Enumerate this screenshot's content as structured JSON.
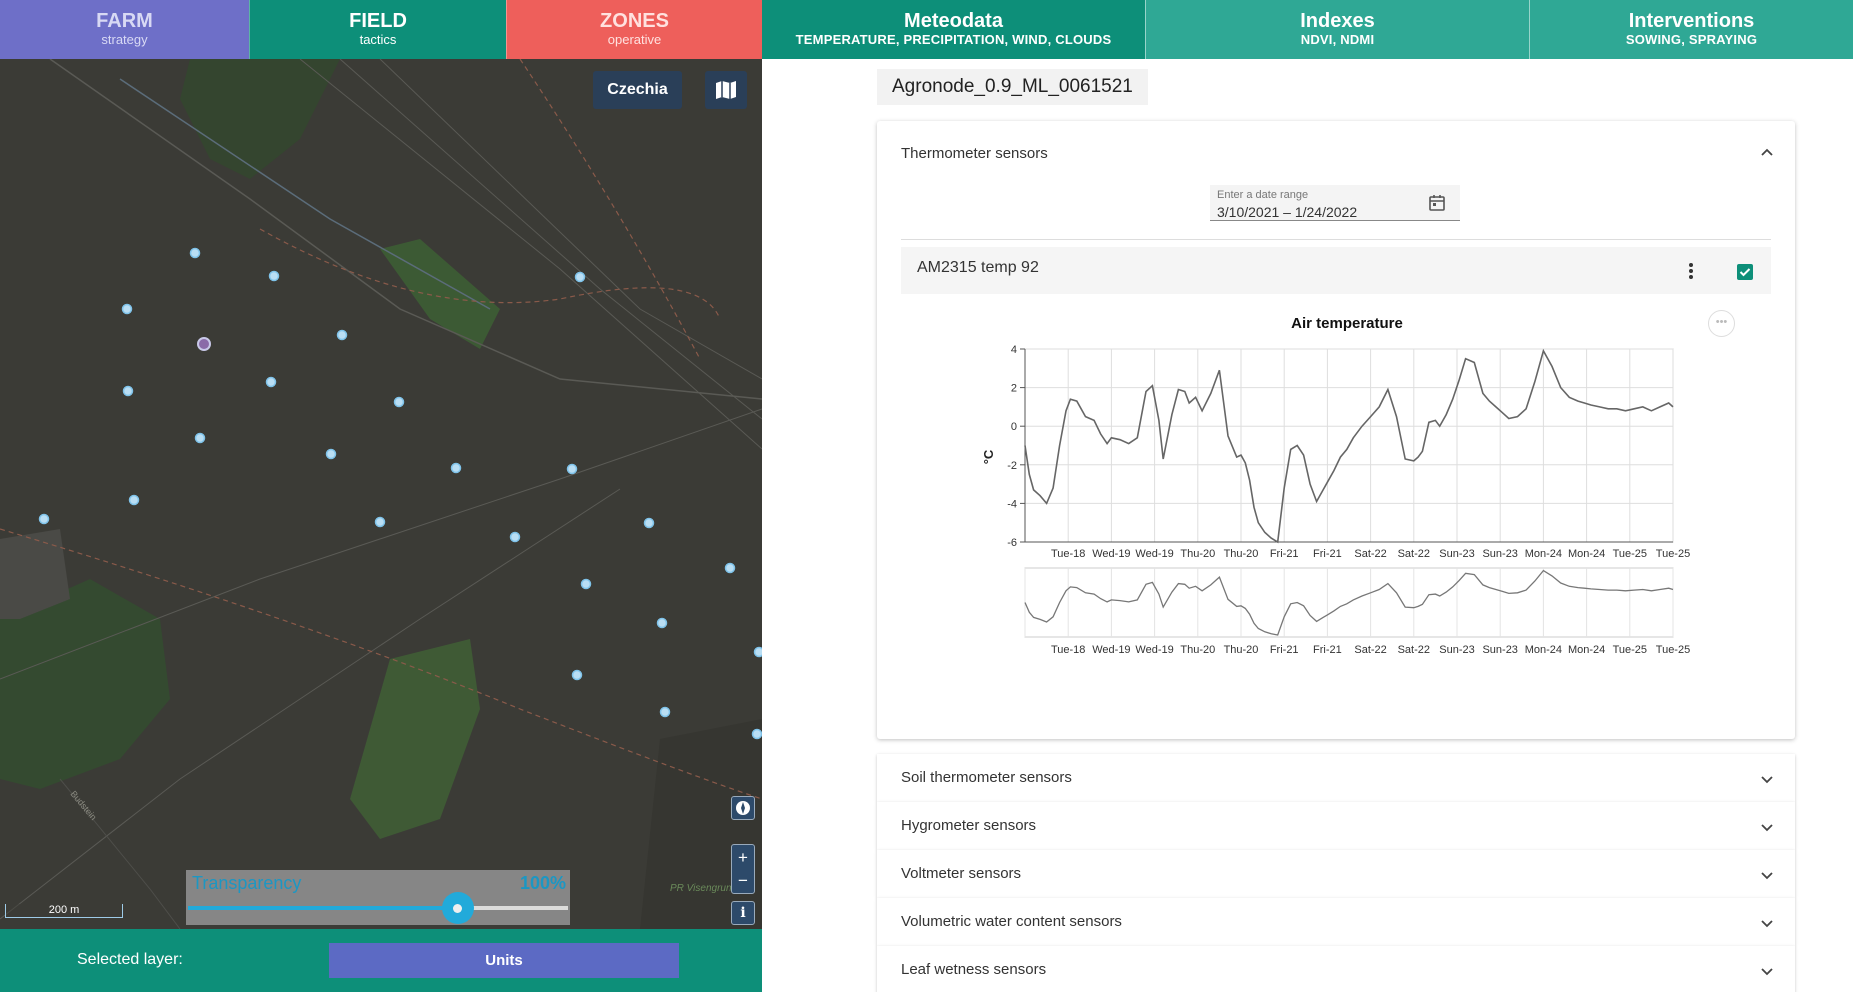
{
  "nav": {
    "farm": {
      "title": "FARM",
      "subtitle": "strategy"
    },
    "field": {
      "title": "FIELD",
      "subtitle": "tactics"
    },
    "zones": {
      "title": "ZONES",
      "subtitle": "operative"
    },
    "meteodata": {
      "title": "Meteodata",
      "subtitle": "TEMPERATURE, PRECIPITATION, WIND, CLOUDS"
    },
    "indexes": {
      "title": "Indexes",
      "subtitle": "NDVI, NDMI"
    },
    "interventions": {
      "title": "Interventions",
      "subtitle": "SOWING, SPRAYING"
    }
  },
  "map": {
    "country_button": "Czechia",
    "map_type_icon": "map-layers-icon",
    "north_icon": "compass-icon",
    "zoom_in": "+",
    "zoom_out": "−",
    "info": "i",
    "scale_label": "200 m",
    "transparency_label": "Transparency",
    "transparency_value": "100%",
    "transparency_fraction": 0.71,
    "place_label": "PR Visengrund",
    "road_label": "Budstein"
  },
  "layer_bar": {
    "label": "Selected layer:",
    "button": "Units"
  },
  "node": {
    "name": "Agronode_0.9_ML_0061521"
  },
  "thermometer": {
    "title": "Thermometer sensors",
    "date_placeholder": "Enter a date range",
    "date_value": "3/10/2021 – 1/24/2022",
    "sensor_name": "AM2315 temp 92",
    "checked": true
  },
  "accordions": [
    {
      "label": "Soil thermometer sensors"
    },
    {
      "label": "Hygrometer sensors"
    },
    {
      "label": "Voltmeter sensors"
    },
    {
      "label": "Volumetric water content sensors"
    },
    {
      "label": "Leaf wetness sensors"
    }
  ],
  "colors": {
    "teal": "#0d8f79",
    "farm": "#6e6fc8",
    "zones": "#ee5f5b",
    "accent_blue": "#20b4e8",
    "units_button": "#5c6ac4"
  },
  "chart_data": {
    "type": "line",
    "title": "Air temperature",
    "xlabel": "",
    "ylabel": "°C",
    "ylim": [
      -6,
      4
    ],
    "y_ticks": [
      4,
      2,
      0,
      -2,
      -4,
      -6
    ],
    "x_tick_labels": [
      "Tue-18",
      "Wed-19",
      "Wed-19",
      "Thu-20",
      "Thu-20",
      "Fri-21",
      "Fri-21",
      "Sat-22",
      "Sat-22",
      "Sun-23",
      "Sun-23",
      "Mon-24",
      "Mon-24",
      "Tue-25",
      "Tue-25"
    ],
    "x_range": [
      0,
      15
    ],
    "grid": true,
    "series": [
      {
        "x": [
          0,
          0.1,
          0.2,
          0.35,
          0.5,
          0.65,
          0.8,
          0.95,
          1.05,
          1.2,
          1.4,
          1.6,
          1.75,
          1.9,
          2.0,
          2.2,
          2.4,
          2.6,
          2.8,
          2.95,
          3.1,
          3.2,
          3.4,
          3.55,
          3.7,
          3.8,
          3.95,
          4.1,
          4.3,
          4.5,
          4.7,
          4.9,
          5.0,
          5.1,
          5.2,
          5.3,
          5.4,
          5.55,
          5.7,
          5.85,
          6.0,
          6.15,
          6.3,
          6.45,
          6.6,
          6.75,
          6.9,
          7.0,
          7.15,
          7.3,
          7.45,
          7.6,
          7.8,
          8.0,
          8.2,
          8.4,
          8.6,
          8.8,
          9.0,
          9.1,
          9.2,
          9.35,
          9.5,
          9.6,
          9.75,
          9.9,
          10.05,
          10.2,
          10.4,
          10.6,
          10.75,
          10.9,
          11.05,
          11.2,
          11.4,
          11.6,
          11.8,
          12.0,
          12.2,
          12.4,
          12.6,
          12.8,
          12.95,
          13.1,
          13.3,
          13.5,
          13.7,
          13.9,
          14.1,
          14.3,
          14.5,
          14.7,
          14.9,
          15.0
        ],
        "y": [
          -1.0,
          -2.5,
          -3.3,
          -3.6,
          -4.0,
          -3.2,
          -1.0,
          0.8,
          1.4,
          1.3,
          0.5,
          0.3,
          -0.4,
          -0.9,
          -0.6,
          -0.7,
          -0.9,
          -0.6,
          1.8,
          2.1,
          0.3,
          -1.7,
          0.6,
          1.9,
          1.8,
          1.2,
          1.5,
          0.8,
          1.7,
          2.9,
          -0.5,
          -1.6,
          -1.5,
          -1.9,
          -2.8,
          -4.2,
          -5.0,
          -5.5,
          -5.8,
          -6.0,
          -3.2,
          -1.2,
          -1.0,
          -1.5,
          -3.0,
          -3.9,
          -3.3,
          -2.9,
          -2.3,
          -1.6,
          -1.2,
          -0.6,
          0.0,
          0.5,
          1.0,
          1.9,
          0.5,
          -1.7,
          -1.8,
          -1.6,
          -1.3,
          0.2,
          0.3,
          0.0,
          0.6,
          1.4,
          2.4,
          3.5,
          3.3,
          1.7,
          1.3,
          1.0,
          0.7,
          0.4,
          0.5,
          0.9,
          2.3,
          3.9,
          3.1,
          2.0,
          1.5,
          1.3,
          1.2,
          1.1,
          1.0,
          0.9,
          0.9,
          0.8,
          0.9,
          1.0,
          0.8,
          1.0,
          1.2,
          1.0
        ]
      }
    ]
  }
}
